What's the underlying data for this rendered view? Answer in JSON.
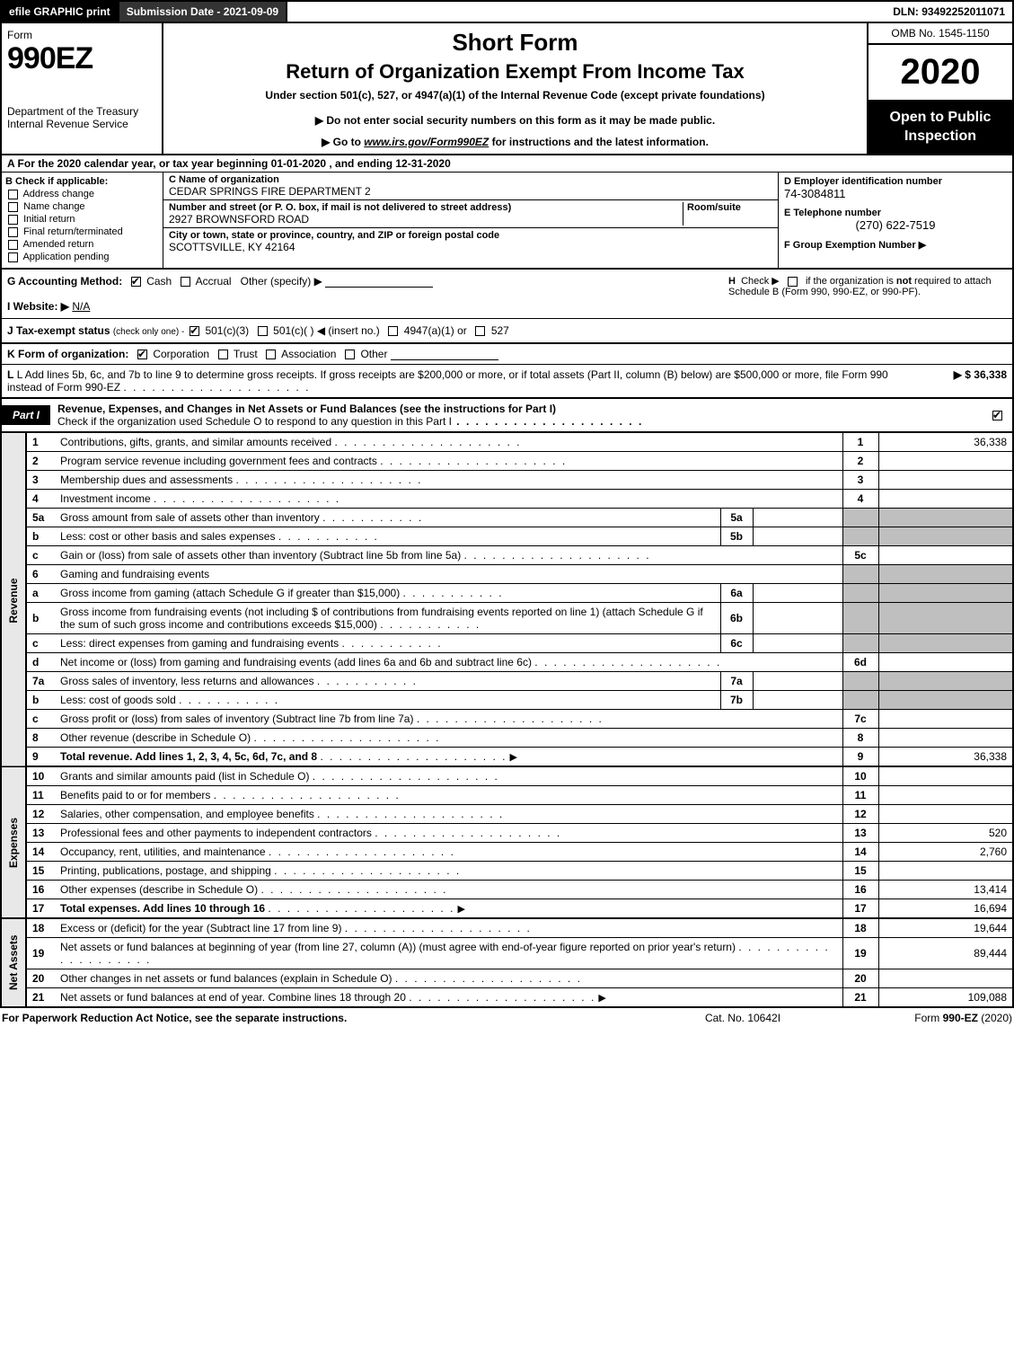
{
  "colors": {
    "black": "#000000",
    "white": "#ffffff",
    "darkbar": "#343434",
    "side_shade": "#e8e8e8",
    "cell_shade": "#bfbfbf"
  },
  "typography": {
    "base_family": "Arial, Helvetica, sans-serif",
    "base_size_pt": 9,
    "formno_size_pt": 26,
    "year_size_pt": 30,
    "title1_size_pt": 20,
    "title2_size_pt": 17
  },
  "topbar": {
    "efile": "efile GRAPHIC print",
    "submission_label": "Submission Date - 2021-09-09",
    "dln": "DLN: 93492252011071"
  },
  "header": {
    "form_word": "Form",
    "form_no": "990EZ",
    "dept": "Department of the Treasury",
    "irs": "Internal Revenue Service",
    "short": "Short Form",
    "title2": "Return of Organization Exempt From Income Tax",
    "under": "Under section 501(c), 527, or 4947(a)(1) of the Internal Revenue Code (except private foundations)",
    "notice": "▶ Do not enter social security numbers on this form as it may be made public.",
    "goto_pre": "▶ Go to ",
    "goto_link": "www.irs.gov/Form990EZ",
    "goto_post": " for instructions and the latest information.",
    "omb": "OMB No. 1545-1150",
    "year": "2020",
    "open": "Open to Public Inspection"
  },
  "A": {
    "text": "A For the 2020 calendar year, or tax year beginning 01-01-2020 , and ending 12-31-2020"
  },
  "B": {
    "hd": "B  Check if applicable:",
    "opts": [
      "Address change",
      "Name change",
      "Initial return",
      "Final return/terminated",
      "Amended return",
      "Application pending"
    ]
  },
  "C": {
    "name_lbl": "C Name of organization",
    "name": "CEDAR SPRINGS FIRE DEPARTMENT 2",
    "street_lbl": "Number and street (or P. O. box, if mail is not delivered to street address)",
    "room_lbl": "Room/suite",
    "street": "2927 BROWNSFORD ROAD",
    "city_lbl": "City or town, state or province, country, and ZIP or foreign postal code",
    "city": "SCOTTSVILLE, KY  42164"
  },
  "D": {
    "ein_lbl": "D Employer identification number",
    "ein": "74-3084811",
    "tel_lbl": "E Telephone number",
    "tel": "(270) 622-7519",
    "grp_lbl": "F Group Exemption Number  ▶"
  },
  "G": {
    "label": "G Accounting Method:",
    "cash": "Cash",
    "accrual": "Accrual",
    "other": "Other (specify) ▶"
  },
  "H": {
    "text": "H  Check ▶  ▢  if the organization is not required to attach Schedule B (Form 990, 990-EZ, or 990-PF)."
  },
  "I": {
    "label": "I Website: ▶",
    "val": "N/A"
  },
  "J": {
    "label": "J Tax-exempt status",
    "paren": "(check only one) - ",
    "c3": "501(c)(3)",
    "c": "501(c)(  ) ◀ (insert no.)",
    "a1": "4947(a)(1) or",
    "s527": "527"
  },
  "K": {
    "label": "K Form of organization:",
    "corp": "Corporation",
    "trust": "Trust",
    "assoc": "Association",
    "other": "Other"
  },
  "L": {
    "text": "L Add lines 5b, 6c, and 7b to line 9 to determine gross receipts. If gross receipts are $200,000 or more, or if total assets (Part II, column (B) below) are $500,000 or more, file Form 990 instead of Form 990-EZ",
    "amount": "▶ $ 36,338"
  },
  "partI": {
    "tag": "Part I",
    "title": "Revenue, Expenses, and Changes in Net Assets or Fund Balances (see the instructions for Part I)",
    "sub": "Check if the organization used Schedule O to respond to any question in this Part I"
  },
  "side_labels": {
    "rev": "Revenue",
    "exp": "Expenses",
    "net": "Net Assets"
  },
  "lines": {
    "revenue": [
      {
        "no": "1",
        "desc": "Contributions, gifts, grants, and similar amounts received",
        "num": "1",
        "val": "36,338"
      },
      {
        "no": "2",
        "desc": "Program service revenue including government fees and contracts",
        "num": "2",
        "val": ""
      },
      {
        "no": "3",
        "desc": "Membership dues and assessments",
        "num": "3",
        "val": ""
      },
      {
        "no": "4",
        "desc": "Investment income",
        "num": "4",
        "val": ""
      },
      {
        "no": "5a",
        "desc": "Gross amount from sale of assets other than inventory",
        "inbox_lbl": "5a",
        "inbox_val": ""
      },
      {
        "no": "b",
        "desc": "Less: cost or other basis and sales expenses",
        "inbox_lbl": "5b",
        "inbox_val": ""
      },
      {
        "no": "c",
        "desc": "Gain or (loss) from sale of assets other than inventory (Subtract line 5b from line 5a)",
        "num": "5c",
        "val": ""
      },
      {
        "no": "6",
        "desc": "Gaming and fundraising events"
      },
      {
        "no": "a",
        "desc": "Gross income from gaming (attach Schedule G if greater than $15,000)",
        "inbox_lbl": "6a",
        "inbox_val": ""
      },
      {
        "no": "b",
        "desc": "Gross income from fundraising events (not including $                 of contributions from fundraising events reported on line 1) (attach Schedule G if the sum of such gross income and contributions exceeds $15,000)",
        "inbox_lbl": "6b",
        "inbox_val": ""
      },
      {
        "no": "c",
        "desc": "Less: direct expenses from gaming and fundraising events",
        "inbox_lbl": "6c",
        "inbox_val": ""
      },
      {
        "no": "d",
        "desc": "Net income or (loss) from gaming and fundraising events (add lines 6a and 6b and subtract line 6c)",
        "num": "6d",
        "val": ""
      },
      {
        "no": "7a",
        "desc": "Gross sales of inventory, less returns and allowances",
        "inbox_lbl": "7a",
        "inbox_val": ""
      },
      {
        "no": "b",
        "desc": "Less: cost of goods sold",
        "inbox_lbl": "7b",
        "inbox_val": ""
      },
      {
        "no": "c",
        "desc": "Gross profit or (loss) from sales of inventory (Subtract line 7b from line 7a)",
        "num": "7c",
        "val": ""
      },
      {
        "no": "8",
        "desc": "Other revenue (describe in Schedule O)",
        "num": "8",
        "val": ""
      },
      {
        "no": "9",
        "desc": "Total revenue. Add lines 1, 2, 3, 4, 5c, 6d, 7c, and 8",
        "num": "9",
        "val": "36,338",
        "bold": true,
        "arrow": true
      }
    ],
    "expenses": [
      {
        "no": "10",
        "desc": "Grants and similar amounts paid (list in Schedule O)",
        "num": "10",
        "val": ""
      },
      {
        "no": "11",
        "desc": "Benefits paid to or for members",
        "num": "11",
        "val": ""
      },
      {
        "no": "12",
        "desc": "Salaries, other compensation, and employee benefits",
        "num": "12",
        "val": ""
      },
      {
        "no": "13",
        "desc": "Professional fees and other payments to independent contractors",
        "num": "13",
        "val": "520"
      },
      {
        "no": "14",
        "desc": "Occupancy, rent, utilities, and maintenance",
        "num": "14",
        "val": "2,760"
      },
      {
        "no": "15",
        "desc": "Printing, publications, postage, and shipping",
        "num": "15",
        "val": ""
      },
      {
        "no": "16",
        "desc": "Other expenses (describe in Schedule O)",
        "num": "16",
        "val": "13,414"
      },
      {
        "no": "17",
        "desc": "Total expenses. Add lines 10 through 16",
        "num": "17",
        "val": "16,694",
        "bold": true,
        "arrow": true
      }
    ],
    "netassets": [
      {
        "no": "18",
        "desc": "Excess or (deficit) for the year (Subtract line 17 from line 9)",
        "num": "18",
        "val": "19,644"
      },
      {
        "no": "19",
        "desc": "Net assets or fund balances at beginning of year (from line 27, column (A)) (must agree with end-of-year figure reported on prior year's return)",
        "num": "19",
        "val": "89,444"
      },
      {
        "no": "20",
        "desc": "Other changes in net assets or fund balances (explain in Schedule O)",
        "num": "20",
        "val": ""
      },
      {
        "no": "21",
        "desc": "Net assets or fund balances at end of year. Combine lines 18 through 20",
        "num": "21",
        "val": "109,088",
        "arrow": true
      }
    ]
  },
  "footer": {
    "left": "For Paperwork Reduction Act Notice, see the separate instructions.",
    "mid": "Cat. No. 10642I",
    "right": "Form 990-EZ (2020)"
  }
}
